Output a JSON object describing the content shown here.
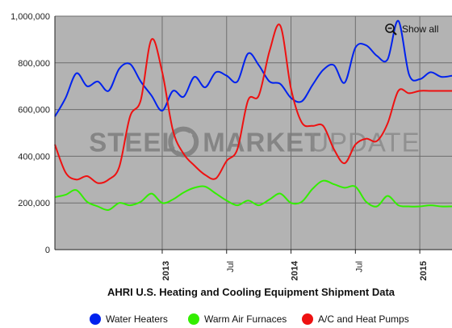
{
  "chart_data": {
    "type": "line",
    "title": "AHRI U.S. Heating and Cooling Equipment Shipment Data",
    "watermark": {
      "word1": "STEEL",
      "word2": "MARKET",
      "word3": "UPDATE"
    },
    "zoom_button": {
      "label": "Show all",
      "icon": "zoom-out-icon"
    },
    "y_axis": {
      "min": 0,
      "max": 1000000,
      "ticks": [
        0,
        200000,
        400000,
        600000,
        800000,
        1000000
      ],
      "tick_labels": [
        "0",
        "200,000",
        "400,000",
        "600,000",
        "800,000",
        "1,000,000"
      ]
    },
    "x_axis": {
      "start": "2012-03",
      "end": "2015-04",
      "ticks": [
        {
          "date": "2013-01",
          "label": "2013",
          "bold": true
        },
        {
          "date": "2013-07",
          "label": "Jul",
          "bold": false
        },
        {
          "date": "2014-01",
          "label": "2014",
          "bold": true
        },
        {
          "date": "2014-07",
          "label": "Jul",
          "bold": false
        },
        {
          "date": "2015-01",
          "label": "2015",
          "bold": true
        }
      ]
    },
    "grid": true,
    "legend_position": "bottom",
    "x": [
      "2012-03",
      "2012-04",
      "2012-05",
      "2012-06",
      "2012-07",
      "2012-08",
      "2012-09",
      "2012-10",
      "2012-11",
      "2012-12",
      "2013-01",
      "2013-02",
      "2013-03",
      "2013-04",
      "2013-05",
      "2013-06",
      "2013-07",
      "2013-08",
      "2013-09",
      "2013-10",
      "2013-11",
      "2013-12",
      "2014-01",
      "2014-02",
      "2014-03",
      "2014-04",
      "2014-05",
      "2014-06",
      "2014-07",
      "2014-08",
      "2014-09",
      "2014-10",
      "2014-11",
      "2014-12",
      "2015-01",
      "2015-02",
      "2015-03",
      "2015-04"
    ],
    "series": [
      {
        "name": "Water Heaters",
        "color": "#0022ee",
        "values": [
          570000,
          650000,
          755000,
          700000,
          720000,
          680000,
          775000,
          795000,
          720000,
          660000,
          595000,
          680000,
          655000,
          740000,
          695000,
          760000,
          745000,
          720000,
          840000,
          790000,
          720000,
          710000,
          650000,
          635000,
          705000,
          770000,
          790000,
          715000,
          865000,
          875000,
          830000,
          815000,
          980000,
          750000,
          730000,
          760000,
          740000,
          745000
        ]
      },
      {
        "name": "Warm Air Furnaces",
        "color": "#33ee00",
        "values": [
          225000,
          235000,
          255000,
          205000,
          185000,
          170000,
          200000,
          190000,
          205000,
          240000,
          200000,
          215000,
          245000,
          265000,
          270000,
          240000,
          210000,
          190000,
          210000,
          190000,
          215000,
          240000,
          200000,
          205000,
          260000,
          295000,
          280000,
          265000,
          270000,
          205000,
          185000,
          230000,
          190000,
          185000,
          185000,
          190000,
          185000,
          185000
        ]
      },
      {
        "name": "A/C and Heat Pumps",
        "color": "#ee1111",
        "values": [
          450000,
          330000,
          300000,
          315000,
          285000,
          300000,
          355000,
          570000,
          640000,
          900000,
          760000,
          510000,
          410000,
          360000,
          320000,
          305000,
          380000,
          430000,
          640000,
          660000,
          850000,
          960000,
          690000,
          545000,
          530000,
          530000,
          430000,
          370000,
          450000,
          475000,
          465000,
          540000,
          680000,
          670000,
          680000,
          680000,
          680000,
          680000
        ]
      }
    ]
  }
}
